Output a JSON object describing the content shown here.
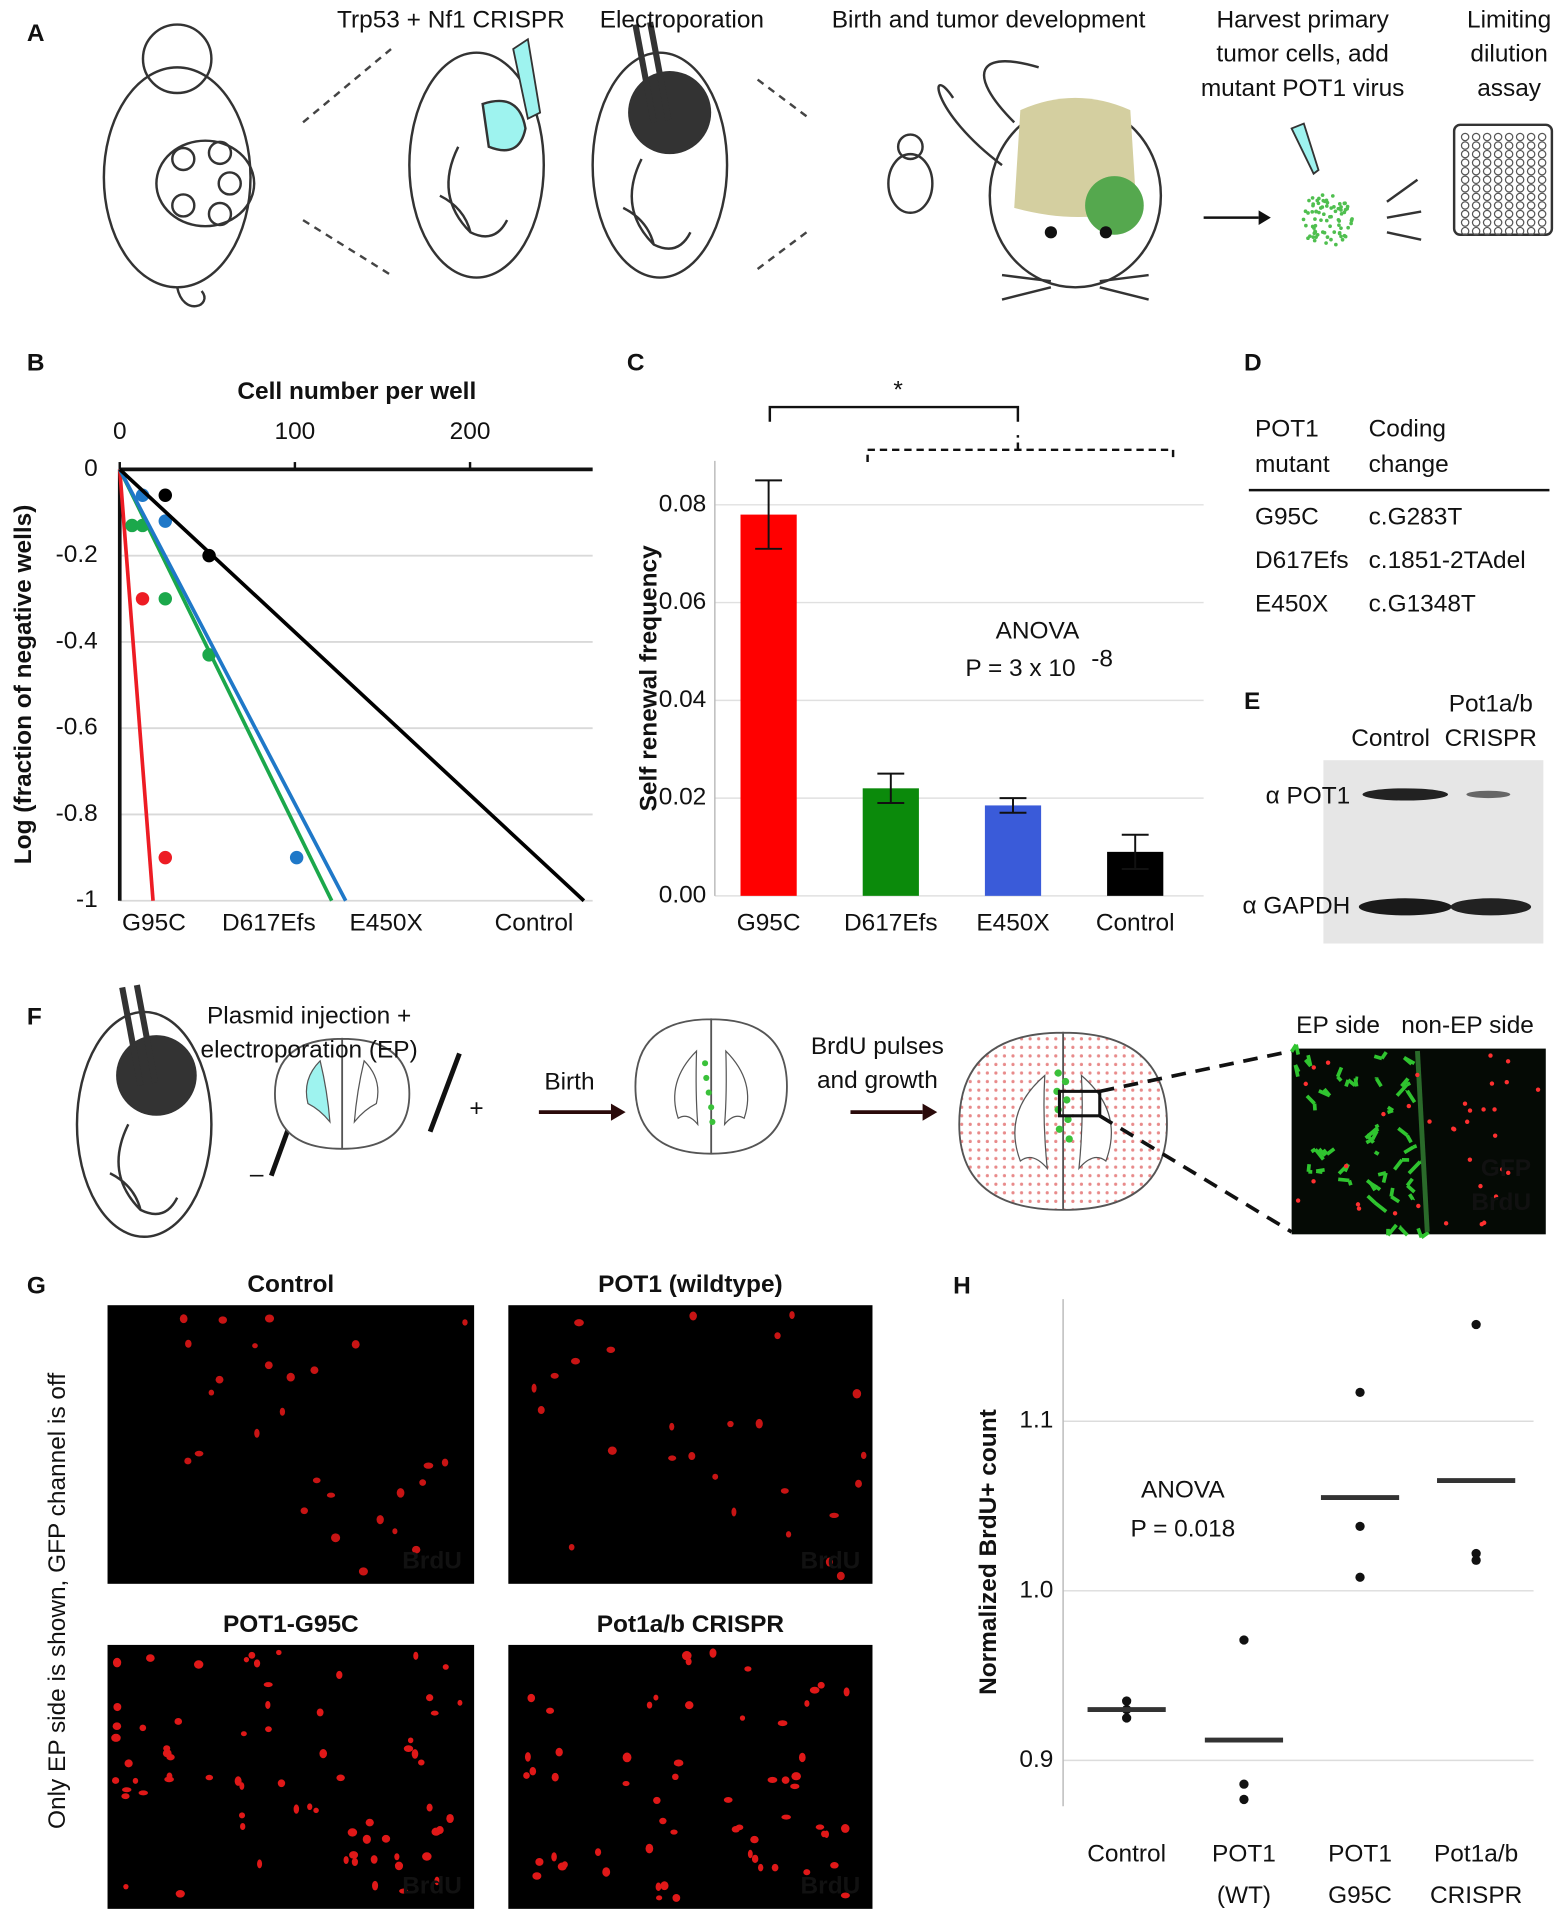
{
  "panel_labels": [
    "A",
    "B",
    "C",
    "D",
    "E",
    "F",
    "G",
    "H"
  ],
  "panel_a": {
    "steps": [
      [
        "Trp53 + Nf1 CRISPR"
      ],
      [
        "Electroporation"
      ],
      [
        "Birth and tumor development"
      ],
      [
        "Harvest primary",
        "tumor cells, add",
        "mutant POT1 virus"
      ],
      [
        "Limiting",
        "dilution",
        "assay"
      ]
    ]
  },
  "chart_data": [
    {
      "type": "scatter",
      "xlabel": "Cell number per well",
      "ylabel": "Log (fraction of negative wells)",
      "xlim": [
        0,
        270
      ],
      "xticks": [
        0,
        100,
        200
      ],
      "ylim": [
        -1,
        0
      ],
      "yticks": [
        0,
        -0.2,
        -0.4,
        -0.6,
        -0.8,
        -1
      ],
      "grid": true,
      "series": [
        {
          "name": "G95C",
          "color": "#ed1c24",
          "x": [
            13,
            26
          ],
          "values": [
            -0.3,
            -0.9
          ],
          "fit": {
            "x": [
              0,
              19
            ],
            "values": [
              0,
              -1
            ]
          }
        },
        {
          "name": "D617Efs",
          "color": "#1ba84b",
          "x": [
            7,
            13,
            26,
            51
          ],
          "values": [
            -0.13,
            -0.13,
            -0.3,
            -0.43
          ],
          "fit": {
            "x": [
              0,
              121
            ],
            "values": [
              0,
              -1
            ]
          }
        },
        {
          "name": "E450X",
          "color": "#1f78c8",
          "x": [
            13,
            26,
            101
          ],
          "values": [
            -0.06,
            -0.12,
            -0.9
          ],
          "fit": {
            "x": [
              0,
              129
            ],
            "values": [
              0,
              -1
            ]
          }
        },
        {
          "name": "Control",
          "color": "#000000",
          "x": [
            26,
            51
          ],
          "values": [
            -0.06,
            -0.2
          ],
          "fit": {
            "x": [
              0,
              265
            ],
            "values": [
              0,
              -1
            ]
          }
        }
      ]
    },
    {
      "type": "bar",
      "ylabel": "Self renewal frequency",
      "categories": [
        "G95C",
        "D617Efs",
        "E450X",
        "Control"
      ],
      "colors": [
        "#ff0000",
        "#0b8a0b",
        "#3a5bd9",
        "#000000"
      ],
      "label_colors": [
        "#ed1c24",
        "#1ba84b",
        "#1f78c8",
        "#111111"
      ],
      "values": [
        0.078,
        0.022,
        0.0185,
        0.009
      ],
      "errors": [
        0.007,
        0.003,
        0.0015,
        0.0035
      ],
      "ylim": [
        0,
        0.089
      ],
      "yticks": [
        {
          "value": 0,
          "label": "0.00"
        },
        {
          "value": 0.02,
          "label": "0.02"
        },
        {
          "value": 0.04,
          "label": "0.04"
        },
        {
          "value": 0.06,
          "label": "0.06"
        },
        {
          "value": 0.08,
          "label": "0.08"
        }
      ],
      "grid": true,
      "annotations": {
        "test": "ANOVA",
        "p_text": "P = 3 x 10",
        "p_exponent": "-8",
        "significance": "*"
      }
    },
    {
      "type": "dot",
      "ylabel": "Normalized BrdU+ count",
      "categories": [
        [
          "Control"
        ],
        [
          "POT1",
          "(WT)"
        ],
        [
          "POT1",
          "G95C"
        ],
        [
          "Pot1a/b",
          "CRISPR"
        ]
      ],
      "points": [
        [
          0.935,
          0.93,
          0.925
        ],
        [
          0.971,
          0.886,
          0.877
        ],
        [
          1.117,
          1.038,
          1.008
        ],
        [
          1.157,
          1.022,
          1.018
        ]
      ],
      "means": [
        0.93,
        0.912,
        1.055,
        1.065
      ],
      "color": "#111111",
      "ylim": [
        0.873,
        1.172
      ],
      "yticks": [
        0.9,
        {
          "value": 1,
          "label": "1.0"
        },
        1.1
      ],
      "grid": true,
      "annotations": {
        "test": "ANOVA",
        "p_text": "P = 0.018"
      }
    }
  ],
  "panel_d": {
    "header": [
      [
        "POT1",
        "mutant"
      ],
      [
        "Coding",
        "change"
      ]
    ],
    "rows": [
      [
        "G95C",
        "c.G283T"
      ],
      [
        "D617Efs",
        "c.1851-2TAdel"
      ],
      [
        "E450X",
        "c.G1348T"
      ]
    ]
  },
  "panel_e": {
    "columns": [
      [
        "Control"
      ],
      [
        "Pot1a/b",
        "CRISPR"
      ]
    ],
    "rows": [
      "α POT1",
      "α GAPDH"
    ]
  },
  "panel_f": {
    "steps": [
      [
        "Plasmid injection +",
        "electroporation (EP)"
      ],
      [
        "Birth"
      ],
      [
        "BrdU pulses",
        "and growth"
      ]
    ],
    "electrodes": [
      "–",
      "+"
    ],
    "inset": {
      "sides": [
        "EP side",
        "non-EP side"
      ],
      "channels": [
        "GFP",
        "BrdU"
      ]
    }
  },
  "panel_g": {
    "side_note": "Only EP side is shown, GFP channel is off",
    "images": [
      {
        "title": "Control",
        "channel": "BrdU"
      },
      {
        "title": "POT1 (wildtype)",
        "channel": "BrdU"
      },
      {
        "title": "POT1-G95C",
        "channel": "BrdU"
      },
      {
        "title": "Pot1a/b CRISPR",
        "channel": "BrdU"
      }
    ]
  }
}
